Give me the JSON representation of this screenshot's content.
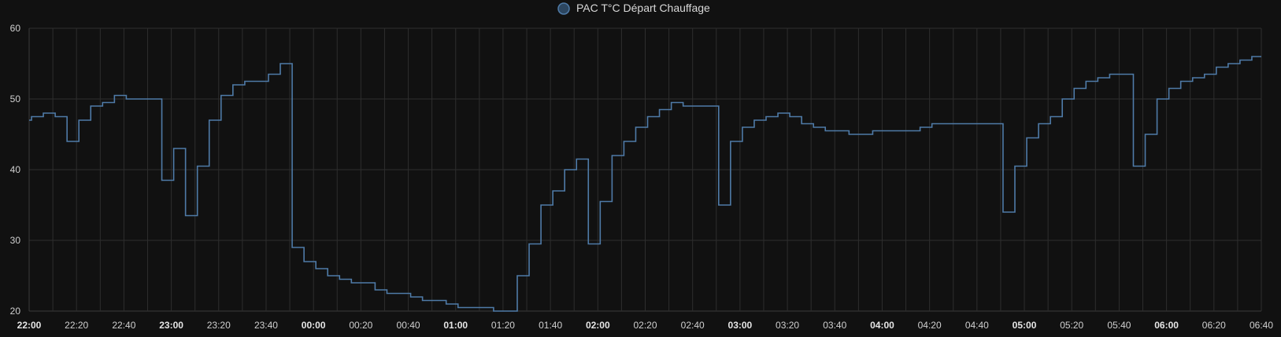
{
  "chart_data": {
    "type": "line",
    "step": true,
    "title": "",
    "xlabel": "",
    "ylabel": "",
    "ylim": [
      20,
      60
    ],
    "xlim": [
      "22:00",
      "06:40"
    ],
    "yticks": [
      "20",
      "30",
      "40",
      "50",
      "60"
    ],
    "xticks": [
      {
        "label": "22:00",
        "major": true
      },
      {
        "label": "22:20",
        "major": false
      },
      {
        "label": "22:40",
        "major": false
      },
      {
        "label": "23:00",
        "major": true
      },
      {
        "label": "23:20",
        "major": false
      },
      {
        "label": "23:40",
        "major": false
      },
      {
        "label": "00:00",
        "major": true
      },
      {
        "label": "00:20",
        "major": false
      },
      {
        "label": "00:40",
        "major": false
      },
      {
        "label": "01:00",
        "major": true
      },
      {
        "label": "01:20",
        "major": false
      },
      {
        "label": "01:40",
        "major": false
      },
      {
        "label": "02:00",
        "major": true
      },
      {
        "label": "02:20",
        "major": false
      },
      {
        "label": "02:40",
        "major": false
      },
      {
        "label": "03:00",
        "major": true
      },
      {
        "label": "03:20",
        "major": false
      },
      {
        "label": "03:40",
        "major": false
      },
      {
        "label": "04:00",
        "major": true
      },
      {
        "label": "04:20",
        "major": false
      },
      {
        "label": "04:40",
        "major": false
      },
      {
        "label": "05:00",
        "major": true
      },
      {
        "label": "05:20",
        "major": false
      },
      {
        "label": "05:40",
        "major": false
      },
      {
        "label": "06:00",
        "major": true
      },
      {
        "label": "06:20",
        "major": false
      },
      {
        "label": "06:40",
        "major": false
      }
    ],
    "grid": true,
    "legend_position": "top-center",
    "series": [
      {
        "name": "PAC T°C Départ Chauffage",
        "color": "#4f7ba8",
        "points": [
          [
            "22:00",
            47
          ],
          [
            "22:01",
            47.5
          ],
          [
            "22:06",
            48
          ],
          [
            "22:11",
            47.5
          ],
          [
            "22:16",
            44
          ],
          [
            "22:21",
            47
          ],
          [
            "22:26",
            49
          ],
          [
            "22:31",
            49.5
          ],
          [
            "22:36",
            50.5
          ],
          [
            "22:41",
            50
          ],
          [
            "22:56",
            38.5
          ],
          [
            "23:01",
            43
          ],
          [
            "23:06",
            33.5
          ],
          [
            "23:11",
            40.5
          ],
          [
            "23:16",
            47
          ],
          [
            "23:21",
            50.5
          ],
          [
            "23:26",
            52
          ],
          [
            "23:31",
            52.5
          ],
          [
            "23:41",
            53.5
          ],
          [
            "23:46",
            55
          ],
          [
            "23:51",
            29
          ],
          [
            "23:56",
            27
          ],
          [
            "00:01",
            26
          ],
          [
            "00:06",
            25
          ],
          [
            "00:11",
            24.5
          ],
          [
            "00:16",
            24
          ],
          [
            "00:26",
            23
          ],
          [
            "00:31",
            22.5
          ],
          [
            "00:41",
            22
          ],
          [
            "00:46",
            21.5
          ],
          [
            "00:56",
            21
          ],
          [
            "01:01",
            20.5
          ],
          [
            "01:16",
            20
          ],
          [
            "01:26",
            25
          ],
          [
            "01:31",
            29.5
          ],
          [
            "01:36",
            35
          ],
          [
            "01:41",
            37
          ],
          [
            "01:46",
            40
          ],
          [
            "01:51",
            41.5
          ],
          [
            "01:56",
            29.5
          ],
          [
            "02:01",
            35.5
          ],
          [
            "02:06",
            42
          ],
          [
            "02:11",
            44
          ],
          [
            "02:16",
            46
          ],
          [
            "02:21",
            47.5
          ],
          [
            "02:26",
            48.5
          ],
          [
            "02:31",
            49.5
          ],
          [
            "02:36",
            49
          ],
          [
            "02:51",
            35
          ],
          [
            "02:56",
            44
          ],
          [
            "03:01",
            46
          ],
          [
            "03:06",
            47
          ],
          [
            "03:11",
            47.5
          ],
          [
            "03:16",
            48
          ],
          [
            "03:21",
            47.5
          ],
          [
            "03:26",
            46.5
          ],
          [
            "03:31",
            46
          ],
          [
            "03:36",
            45.5
          ],
          [
            "03:46",
            45
          ],
          [
            "03:56",
            45.5
          ],
          [
            "04:16",
            46
          ],
          [
            "04:21",
            46.5
          ],
          [
            "04:51",
            34
          ],
          [
            "04:56",
            40.5
          ],
          [
            "05:01",
            44.5
          ],
          [
            "05:06",
            46.5
          ],
          [
            "05:11",
            47.5
          ],
          [
            "05:16",
            50
          ],
          [
            "05:21",
            51.5
          ],
          [
            "05:26",
            52.5
          ],
          [
            "05:31",
            53
          ],
          [
            "05:36",
            53.5
          ],
          [
            "05:46",
            40.5
          ],
          [
            "05:51",
            45
          ],
          [
            "05:56",
            50
          ],
          [
            "06:01",
            51.5
          ],
          [
            "06:06",
            52.5
          ],
          [
            "06:11",
            53
          ],
          [
            "06:16",
            53.5
          ],
          [
            "06:21",
            54.5
          ],
          [
            "06:26",
            55
          ],
          [
            "06:31",
            55.5
          ],
          [
            "06:36",
            56
          ],
          [
            "06:40",
            56
          ]
        ]
      }
    ]
  }
}
